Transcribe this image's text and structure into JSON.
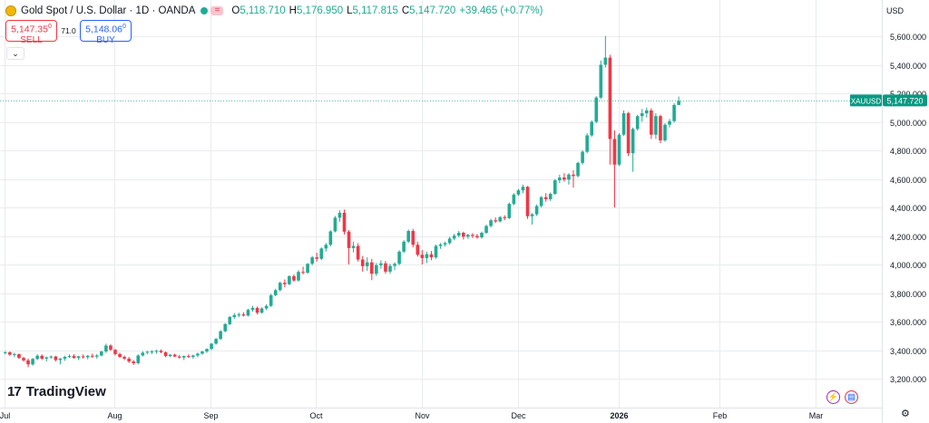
{
  "header": {
    "symbol_title": "Gold Spot / U.S. Dollar · 1D · OANDA",
    "eq_glyph": "=",
    "open_label": "O",
    "open": "5,118.710",
    "high_label": "H",
    "high": "5,176.950",
    "low_label": "L",
    "low": "5,117.815",
    "close_label": "C",
    "close": "5,147.720",
    "change": "+39.465 (+0.77%)"
  },
  "trade": {
    "sell_price": "5,147.35",
    "sell_sup": "0",
    "sell_label": "SELL",
    "spread": "71.0",
    "buy_price": "5,148.06",
    "buy_sup": "0",
    "buy_label": "BUY"
  },
  "currency": "USD",
  "brand": {
    "logo": "17",
    "name": "TradingView"
  },
  "icons": {
    "gold": "gold-coin-icon",
    "collapse": "chevron-down-icon",
    "settings": "gear-icon",
    "event1": "lightning-icon",
    "event2": "us-flag-icon"
  },
  "colors": {
    "up": "#22ab94",
    "down": "#f23645",
    "price_tag": "#089981",
    "buy": "#2962ff",
    "grid": "#e9ebef"
  },
  "chart_data": {
    "type": "candlestick",
    "symbol": "XAUUSD",
    "last_price": "5,147.720",
    "ylim": [
      3100,
      5800
    ],
    "y_ticks": [
      3200,
      3400,
      3600,
      3800,
      4000,
      4200,
      4400,
      4600,
      4800,
      5000,
      5200,
      5400,
      5600
    ],
    "y_tick_labels": [
      "3,200.000",
      "3,400.000",
      "3,600.000",
      "3,800.000",
      "4,000.000",
      "4,200.000",
      "4,400.000",
      "4,600.000",
      "4,800.000",
      "5,000.000",
      "5,200.000",
      "5,400.000",
      "5,600.000"
    ],
    "x_labels": [
      "Jul",
      "Aug",
      "Sep",
      "Oct",
      "Nov",
      "Dec",
      "2026",
      "Feb",
      "Mar"
    ],
    "x_label_bars": [
      0,
      24,
      45,
      68,
      91,
      112,
      134,
      156,
      177
    ],
    "ohlc": [
      [
        3380,
        3392,
        3370,
        3385
      ],
      [
        3385,
        3390,
        3360,
        3368
      ],
      [
        3368,
        3382,
        3350,
        3372
      ],
      [
        3372,
        3375,
        3338,
        3345
      ],
      [
        3345,
        3352,
        3320,
        3328
      ],
      [
        3328,
        3340,
        3280,
        3300
      ],
      [
        3300,
        3345,
        3290,
        3338
      ],
      [
        3338,
        3372,
        3330,
        3360
      ],
      [
        3360,
        3370,
        3330,
        3340
      ],
      [
        3340,
        3355,
        3320,
        3348
      ],
      [
        3348,
        3362,
        3340,
        3355
      ],
      [
        3355,
        3360,
        3320,
        3330
      ],
      [
        3330,
        3345,
        3300,
        3340
      ],
      [
        3340,
        3360,
        3325,
        3352
      ],
      [
        3352,
        3370,
        3345,
        3358
      ],
      [
        3358,
        3372,
        3340,
        3345
      ],
      [
        3345,
        3360,
        3330,
        3356
      ],
      [
        3356,
        3370,
        3340,
        3350
      ],
      [
        3350,
        3365,
        3335,
        3360
      ],
      [
        3360,
        3375,
        3345,
        3354
      ],
      [
        3354,
        3372,
        3340,
        3362
      ],
      [
        3362,
        3395,
        3355,
        3390
      ],
      [
        3390,
        3445,
        3380,
        3432
      ],
      [
        3432,
        3440,
        3395,
        3402
      ],
      [
        3402,
        3408,
        3362,
        3372
      ],
      [
        3372,
        3382,
        3345,
        3352
      ],
      [
        3352,
        3362,
        3330,
        3340
      ],
      [
        3340,
        3352,
        3310,
        3320
      ],
      [
        3320,
        3330,
        3295,
        3308
      ],
      [
        3308,
        3370,
        3300,
        3362
      ],
      [
        3362,
        3392,
        3355,
        3382
      ],
      [
        3382,
        3395,
        3370,
        3388
      ],
      [
        3388,
        3400,
        3372,
        3390
      ],
      [
        3390,
        3402,
        3375,
        3395
      ],
      [
        3395,
        3405,
        3378,
        3385
      ],
      [
        3385,
        3390,
        3350,
        3358
      ],
      [
        3358,
        3372,
        3350,
        3368
      ],
      [
        3368,
        3375,
        3350,
        3355
      ],
      [
        3355,
        3365,
        3340,
        3348
      ],
      [
        3348,
        3362,
        3330,
        3358
      ],
      [
        3358,
        3370,
        3345,
        3352
      ],
      [
        3352,
        3368,
        3340,
        3362
      ],
      [
        3362,
        3382,
        3350,
        3375
      ],
      [
        3375,
        3395,
        3368,
        3390
      ],
      [
        3390,
        3412,
        3380,
        3408
      ],
      [
        3408,
        3450,
        3400,
        3445
      ],
      [
        3445,
        3485,
        3438,
        3478
      ],
      [
        3478,
        3540,
        3472,
        3532
      ],
      [
        3532,
        3590,
        3525,
        3582
      ],
      [
        3582,
        3640,
        3575,
        3632
      ],
      [
        3632,
        3660,
        3618,
        3645
      ],
      [
        3645,
        3662,
        3630,
        3650
      ],
      [
        3650,
        3665,
        3635,
        3642
      ],
      [
        3642,
        3690,
        3635,
        3682
      ],
      [
        3682,
        3710,
        3670,
        3695
      ],
      [
        3695,
        3705,
        3650,
        3662
      ],
      [
        3662,
        3700,
        3655,
        3692
      ],
      [
        3692,
        3720,
        3680,
        3710
      ],
      [
        3710,
        3795,
        3702,
        3785
      ],
      [
        3785,
        3830,
        3778,
        3820
      ],
      [
        3820,
        3880,
        3812,
        3872
      ],
      [
        3872,
        3895,
        3840,
        3862
      ],
      [
        3862,
        3925,
        3855,
        3918
      ],
      [
        3918,
        3930,
        3878,
        3888
      ],
      [
        3888,
        3960,
        3880,
        3948
      ],
      [
        3948,
        3985,
        3930,
        3942
      ],
      [
        3942,
        4010,
        3935,
        4005
      ],
      [
        4005,
        4060,
        3995,
        4050
      ],
      [
        4050,
        4082,
        4020,
        4040
      ],
      [
        4040,
        4120,
        4030,
        4112
      ],
      [
        4112,
        4150,
        4090,
        4138
      ],
      [
        4138,
        4240,
        4128,
        4232
      ],
      [
        4232,
        4340,
        4225,
        4328
      ],
      [
        4328,
        4380,
        4300,
        4362
      ],
      [
        4362,
        4385,
        4210,
        4230
      ],
      [
        4230,
        4242,
        4000,
        4115
      ],
      [
        4115,
        4160,
        4085,
        4130
      ],
      [
        4130,
        4150,
        4020,
        4035
      ],
      [
        4035,
        4060,
        3950,
        3988
      ],
      [
        3988,
        4050,
        3955,
        4015
      ],
      [
        4015,
        4040,
        3890,
        3935
      ],
      [
        3935,
        4010,
        3920,
        3995
      ],
      [
        3995,
        4030,
        3970,
        4008
      ],
      [
        4008,
        4025,
        3935,
        3950
      ],
      [
        3950,
        4005,
        3935,
        3990
      ],
      [
        3990,
        4015,
        3960,
        4005
      ],
      [
        4005,
        4100,
        3995,
        4090
      ],
      [
        4090,
        4170,
        4080,
        4160
      ],
      [
        4160,
        4245,
        4150,
        4235
      ],
      [
        4235,
        4250,
        4120,
        4138
      ],
      [
        4138,
        4160,
        4055,
        4068
      ],
      [
        4068,
        4100,
        4000,
        4045
      ],
      [
        4045,
        4090,
        4010,
        4072
      ],
      [
        4072,
        4095,
        4030,
        4050
      ],
      [
        4050,
        4140,
        4040,
        4130
      ],
      [
        4130,
        4150,
        4110,
        4140
      ],
      [
        4140,
        4160,
        4125,
        4150
      ],
      [
        4150,
        4195,
        4140,
        4182
      ],
      [
        4182,
        4215,
        4170,
        4202
      ],
      [
        4202,
        4235,
        4190,
        4222
      ],
      [
        4222,
        4230,
        4175,
        4195
      ],
      [
        4195,
        4215,
        4180,
        4208
      ],
      [
        4208,
        4220,
        4185,
        4200
      ],
      [
        4200,
        4215,
        4180,
        4190
      ],
      [
        4190,
        4230,
        4180,
        4222
      ],
      [
        4222,
        4280,
        4215,
        4270
      ],
      [
        4270,
        4320,
        4260,
        4310
      ],
      [
        4310,
        4330,
        4290,
        4302
      ],
      [
        4302,
        4340,
        4295,
        4332
      ],
      [
        4332,
        4345,
        4310,
        4325
      ],
      [
        4325,
        4435,
        4318,
        4425
      ],
      [
        4425,
        4500,
        4415,
        4490
      ],
      [
        4490,
        4530,
        4480,
        4520
      ],
      [
        4520,
        4560,
        4500,
        4545
      ],
      [
        4545,
        4550,
        4320,
        4338
      ],
      [
        4338,
        4360,
        4280,
        4352
      ],
      [
        4352,
        4420,
        4340,
        4410
      ],
      [
        4410,
        4480,
        4400,
        4472
      ],
      [
        4472,
        4500,
        4440,
        4458
      ],
      [
        4458,
        4505,
        4445,
        4495
      ],
      [
        4495,
        4600,
        4488,
        4590
      ],
      [
        4590,
        4630,
        4570,
        4610
      ],
      [
        4610,
        4640,
        4580,
        4595
      ],
      [
        4595,
        4640,
        4560,
        4630
      ],
      [
        4630,
        4660,
        4540,
        4620
      ],
      [
        4620,
        4720,
        4610,
        4712
      ],
      [
        4712,
        4800,
        4700,
        4790
      ],
      [
        4790,
        4920,
        4780,
        4905
      ],
      [
        4905,
        5010,
        4895,
        5000
      ],
      [
        5000,
        5180,
        4990,
        5170
      ],
      [
        5170,
        5430,
        5160,
        5400
      ],
      [
        5400,
        5600,
        5380,
        5450
      ],
      [
        5450,
        5470,
        4700,
        4880
      ],
      [
        4880,
        4940,
        4400,
        4700
      ],
      [
        4700,
        4920,
        4690,
        4910
      ],
      [
        4910,
        5080,
        4900,
        5060
      ],
      [
        5060,
        5070,
        4760,
        4780
      ],
      [
        4780,
        4960,
        4650,
        4950
      ],
      [
        4950,
        5050,
        4940,
        5040
      ],
      [
        5040,
        5090,
        5000,
        5060
      ],
      [
        5060,
        5100,
        5030,
        5080
      ],
      [
        5080,
        5095,
        4880,
        4910
      ],
      [
        4910,
        5060,
        4880,
        5040
      ],
      [
        5040,
        5050,
        4850,
        4870
      ],
      [
        4870,
        4990,
        4860,
        4980
      ],
      [
        4980,
        5020,
        4960,
        5005
      ],
      [
        5005,
        5130,
        4995,
        5118
      ],
      [
        5118,
        5177,
        5117,
        5147
      ]
    ]
  }
}
